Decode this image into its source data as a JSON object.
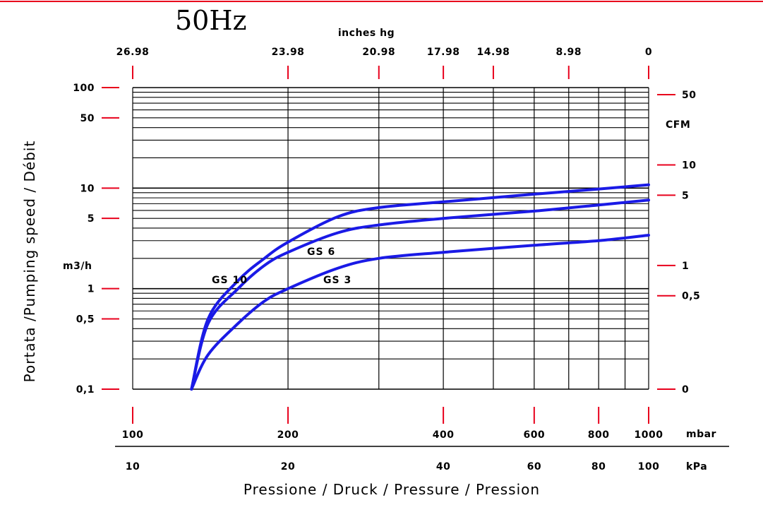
{
  "chart_data": {
    "type": "line",
    "title": "50Hz",
    "top_axis": {
      "label": "inches hg",
      "ticks": [
        {
          "label": "26.98",
          "mbar": 100
        },
        {
          "label": "23.98",
          "mbar": 200
        },
        {
          "label": "20.98",
          "mbar": 300
        },
        {
          "label": "17.98",
          "mbar": 400
        },
        {
          "label": "14.98",
          "mbar": 500
        },
        {
          "label": "8.98",
          "mbar": 700
        },
        {
          "label": "0",
          "mbar": 1000
        }
      ]
    },
    "x_axis": {
      "scale": "log",
      "range_mbar": [
        100,
        1000
      ],
      "unit": "mbar",
      "ticks": [
        {
          "label": "100",
          "mbar": 100
        },
        {
          "label": "200",
          "mbar": 200
        },
        {
          "label": "400",
          "mbar": 400
        },
        {
          "label": "600",
          "mbar": 600
        },
        {
          "label": "800",
          "mbar": 800
        },
        {
          "label": "1000",
          "mbar": 1000
        }
      ],
      "gridlines_mbar": [
        100,
        200,
        300,
        400,
        500,
        600,
        700,
        800,
        900,
        1000
      ]
    },
    "x_axis_kpa": {
      "unit": "kPa",
      "ticks": [
        {
          "label": "10",
          "mbar": 100
        },
        {
          "label": "20",
          "mbar": 200
        },
        {
          "label": "40",
          "mbar": 400
        },
        {
          "label": "60",
          "mbar": 600
        },
        {
          "label": "80",
          "mbar": 800
        },
        {
          "label": "100",
          "mbar": 1000
        }
      ]
    },
    "xlabel": "Pressione / Druck / Pressure / Pression",
    "y_axis_left": {
      "scale": "log",
      "range": [
        0.1,
        100
      ],
      "unit": "m3/h",
      "ticks": [
        {
          "label": "100",
          "value": 100
        },
        {
          "label": "50",
          "value": 50
        },
        {
          "label": "10",
          "value": 10
        },
        {
          "label": "5",
          "value": 5
        },
        {
          "label": "1",
          "value": 1
        },
        {
          "label": "0,5",
          "value": 0.5
        },
        {
          "label": "0,1",
          "value": 0.1
        }
      ]
    },
    "ylabel": "Portata /Pumping speed / Débit",
    "y_axis_right": {
      "unit": "CFM",
      "ticks": [
        {
          "label": "50",
          "value": 85
        },
        {
          "label": "10",
          "value": 17
        },
        {
          "label": "5",
          "value": 8.5
        },
        {
          "label": "1",
          "value": 1.7
        },
        {
          "label": "0,5",
          "value": 0.85
        },
        {
          "label": "0",
          "value": 0.1
        }
      ]
    },
    "grid": true,
    "series_color": "#1a1ae6",
    "tick_color": "#e8001c",
    "series": [
      {
        "name": "GS 10",
        "x_mbar": [
          130,
          140,
          160,
          180,
          200,
          250,
          300,
          400,
          600,
          800,
          1000
        ],
        "y_m3h": [
          0.1,
          0.5,
          1.2,
          2.0,
          2.9,
          5.2,
          6.4,
          7.3,
          8.7,
          9.8,
          10.8
        ]
      },
      {
        "name": "GS 6",
        "x_mbar": [
          130,
          140,
          160,
          180,
          200,
          250,
          300,
          400,
          600,
          800,
          1000
        ],
        "y_m3h": [
          0.1,
          0.45,
          1.0,
          1.7,
          2.3,
          3.6,
          4.3,
          5.0,
          5.9,
          6.8,
          7.6
        ]
      },
      {
        "name": "GS 3",
        "x_mbar": [
          130,
          140,
          160,
          180,
          200,
          250,
          300,
          400,
          600,
          800,
          1000
        ],
        "y_m3h": [
          0.1,
          0.22,
          0.45,
          0.75,
          1.0,
          1.6,
          2.0,
          2.3,
          2.7,
          3.0,
          3.4
        ]
      }
    ]
  }
}
